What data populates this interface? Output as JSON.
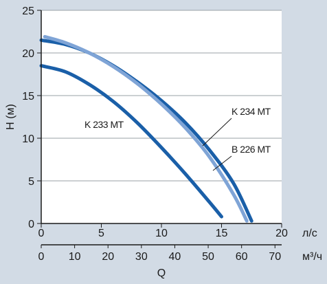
{
  "chart_data": {
    "type": "line",
    "ylabel": "H (м)",
    "xlabel": "Q",
    "x_unit_primary": "л/с",
    "x_unit_secondary": "м³/ч",
    "xlim": [
      0,
      20
    ],
    "ylim": [
      0,
      25
    ],
    "x_ticks": [
      "0",
      "5",
      "10",
      "15",
      "20"
    ],
    "y_ticks": [
      "0",
      "5",
      "10",
      "15",
      "20",
      "25"
    ],
    "x2_ticks": [
      "0",
      "10",
      "20",
      "30",
      "40",
      "50",
      "60",
      "70"
    ],
    "grid": "horizontal",
    "series": [
      {
        "name": "K 233 MT",
        "color": "#1a5fa8",
        "x": [
          0,
          2,
          4,
          6,
          8,
          10,
          12,
          14,
          15
        ],
        "y": [
          18.5,
          17.8,
          16.3,
          14.3,
          11.8,
          8.9,
          5.8,
          2.5,
          0.8
        ]
      },
      {
        "name": "K 234 MT",
        "color": "#1a5fa8",
        "x": [
          0,
          2,
          4,
          6,
          8,
          10,
          12,
          14,
          16,
          17.5
        ],
        "y": [
          21.5,
          21,
          20,
          18.5,
          16.6,
          14.4,
          11.8,
          8.6,
          4.7,
          0.3
        ]
      },
      {
        "name": "B 226 MT",
        "color": "#7fa4d6",
        "x": [
          0.3,
          2,
          4,
          6,
          8,
          10,
          12,
          14,
          16,
          17.1
        ],
        "y": [
          21.9,
          21.2,
          20,
          18.4,
          16.4,
          14,
          11.2,
          7.8,
          3.4,
          0.3
        ]
      }
    ]
  }
}
